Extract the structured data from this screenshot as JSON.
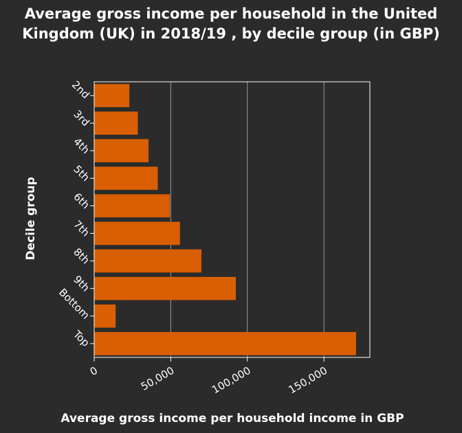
{
  "chart_data": {
    "type": "bar",
    "orientation": "horizontal",
    "title": "Average gross income per household in the United Kingdom (UK) in 2018/19 , by decile group (in GBP)",
    "xlabel": "Average gross income per household income in GBP",
    "ylabel": "Decile group",
    "categories": [
      "2nd",
      "3rd",
      "4th",
      "5th",
      "6th",
      "7th",
      "8th",
      "9th",
      "Bottom",
      "Top"
    ],
    "values": [
      23000,
      28500,
      35500,
      41500,
      49500,
      56000,
      70000,
      92500,
      14000,
      171000
    ],
    "xlim": [
      0,
      180000
    ],
    "xticks": [
      0,
      50000,
      100000,
      150000
    ],
    "xtick_labels": [
      "0",
      "50,000",
      "100,000",
      "150,000"
    ],
    "grid": "vertical",
    "bar_color": "#d95f02",
    "background_color": "#2b2b2b"
  }
}
